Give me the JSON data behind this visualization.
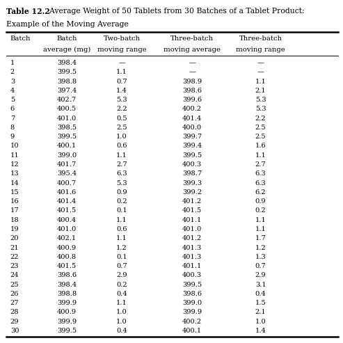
{
  "title_bold": "Table 12.2",
  "title_rest": "  Average Weight of 50 Tablets from 30 Batches of a Tablet Product:",
  "subtitle": "Example of the Moving Average",
  "col_headers_line1": [
    "Batch",
    "Batch",
    "Two-batch",
    "Three-batch",
    "Three-batch"
  ],
  "col_headers_line2": [
    "",
    "average (mg)",
    "moving range",
    "moving average",
    "moving range"
  ],
  "batches": [
    1,
    2,
    3,
    4,
    5,
    6,
    7,
    8,
    9,
    10,
    11,
    12,
    13,
    14,
    15,
    16,
    17,
    18,
    19,
    20,
    21,
    22,
    23,
    24,
    25,
    26,
    27,
    28,
    29,
    30
  ],
  "batch_avg": [
    "398.4",
    "399.5",
    "398.8",
    "397.4",
    "402.7",
    "400.5",
    "401.0",
    "398.5",
    "399.5",
    "400.1",
    "399.0",
    "401.7",
    "395.4",
    "400.7",
    "401.6",
    "401.4",
    "401.5",
    "400.4",
    "401.0",
    "402.1",
    "400.9",
    "400.8",
    "401.5",
    "398.6",
    "398.4",
    "398.8",
    "399.9",
    "400.9",
    "399.9",
    "399.5"
  ],
  "two_batch_mr": [
    "—",
    "1.1",
    "0.7",
    "1.4",
    "5.3",
    "2.2",
    "0.5",
    "2.5",
    "1.0",
    "0.6",
    "1.1",
    "2.7",
    "6.3",
    "5.3",
    "0.9",
    "0.2",
    "0.1",
    "1.1",
    "0.6",
    "1.1",
    "1.2",
    "0.1",
    "0.7",
    "2.9",
    "0.2",
    "0.4",
    "1.1",
    "1.0",
    "1.0",
    "0.4"
  ],
  "three_batch_ma": [
    "—",
    "—",
    "398.9",
    "398.6",
    "399.6",
    "400.2",
    "401.4",
    "400.0",
    "399.7",
    "399.4",
    "399.5",
    "400.3",
    "398.7",
    "399.3",
    "399.2",
    "401.2",
    "401.5",
    "401.1",
    "401.0",
    "401.2",
    "401.3",
    "401.3",
    "401.1",
    "400.3",
    "399.5",
    "398.6",
    "399.0",
    "399.9",
    "400.2",
    "400.1"
  ],
  "three_batch_mr": [
    "—",
    "—",
    "1.1",
    "2.1",
    "5.3",
    "5.3",
    "2.2",
    "2.5",
    "2.5",
    "1.6",
    "1.1",
    "2.7",
    "6.3",
    "6.3",
    "6.2",
    "0.9",
    "0.2",
    "1.1",
    "1.1",
    "1.7",
    "1.2",
    "1.3",
    "0.7",
    "2.9",
    "3.1",
    "0.4",
    "1.5",
    "2.1",
    "1.0",
    "1.4"
  ],
  "fig_width": 4.93,
  "fig_height": 4.93,
  "dpi": 100,
  "bg_color": "#ffffff",
  "text_color": "#000000",
  "title_fontsize": 7.8,
  "header_fontsize": 7.3,
  "data_fontsize": 7.1
}
